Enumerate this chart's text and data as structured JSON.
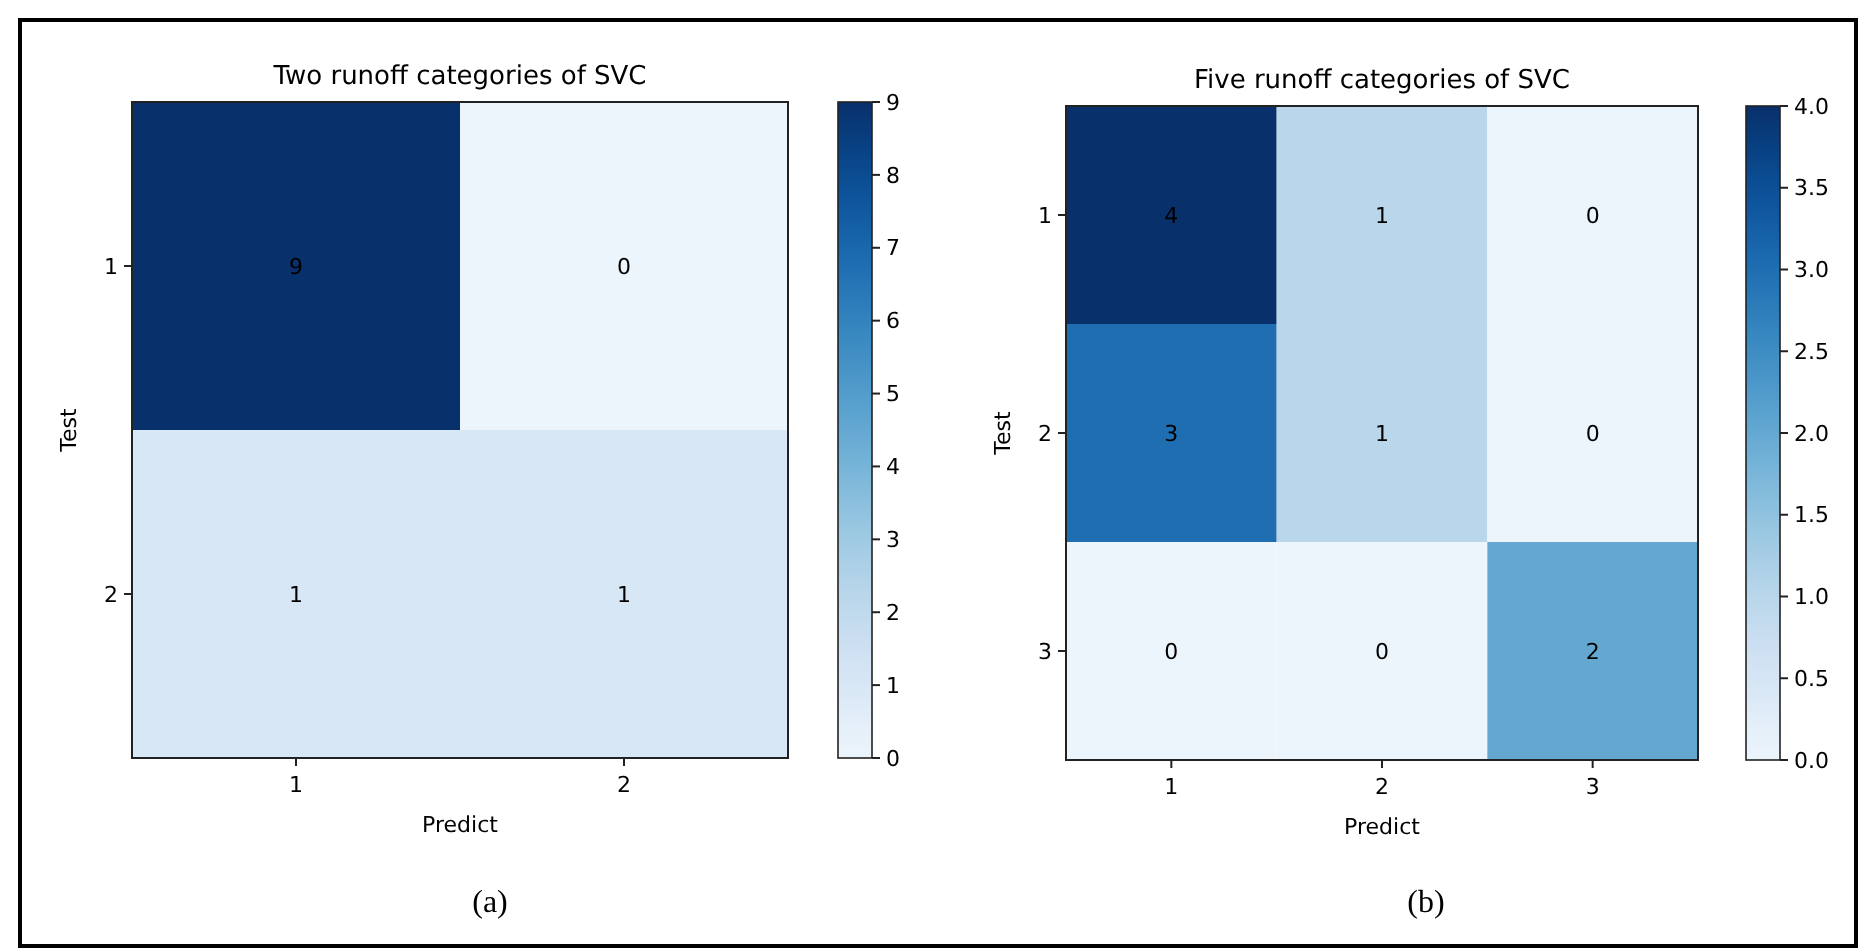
{
  "chart_data": [
    {
      "type": "heatmap",
      "title": "Two runoff categories of SVC",
      "xlabel": "Predict",
      "ylabel": "Test",
      "categories": [
        "1",
        "2"
      ],
      "y_categories": [
        "1",
        "2"
      ],
      "cells": [
        [
          9,
          0
        ],
        [
          1,
          1
        ]
      ],
      "data_labels": true,
      "clim": [
        0,
        9
      ],
      "cticks": [
        0,
        1,
        2,
        3,
        4,
        5,
        6,
        7,
        8,
        9
      ],
      "annotations": [
        "(a)"
      ]
    },
    {
      "type": "heatmap",
      "title": "Five runoff categories of SVC",
      "xlabel": "Predict",
      "ylabel": "Test",
      "categories": [
        "1",
        "2",
        "3"
      ],
      "y_categories": [
        "1",
        "2",
        "3"
      ],
      "cells": [
        [
          4,
          1,
          0
        ],
        [
          3,
          1,
          0
        ],
        [
          0,
          0,
          2
        ]
      ],
      "data_labels": true,
      "clim": [
        0,
        4
      ],
      "cticks": [
        {
          "value": 0,
          "label": "0.0"
        },
        {
          "value": 0.5,
          "label": "0.5"
        },
        {
          "value": 1,
          "label": "1.0"
        },
        {
          "value": 1.5,
          "label": "1.5"
        },
        {
          "value": 2,
          "label": "2.0"
        },
        {
          "value": 2.5,
          "label": "2.5"
        },
        {
          "value": 3,
          "label": "3.0"
        },
        {
          "value": 3.5,
          "label": "3.5"
        },
        {
          "value": 4,
          "label": "4.0"
        }
      ],
      "annotations": [
        "(b)"
      ]
    }
  ]
}
